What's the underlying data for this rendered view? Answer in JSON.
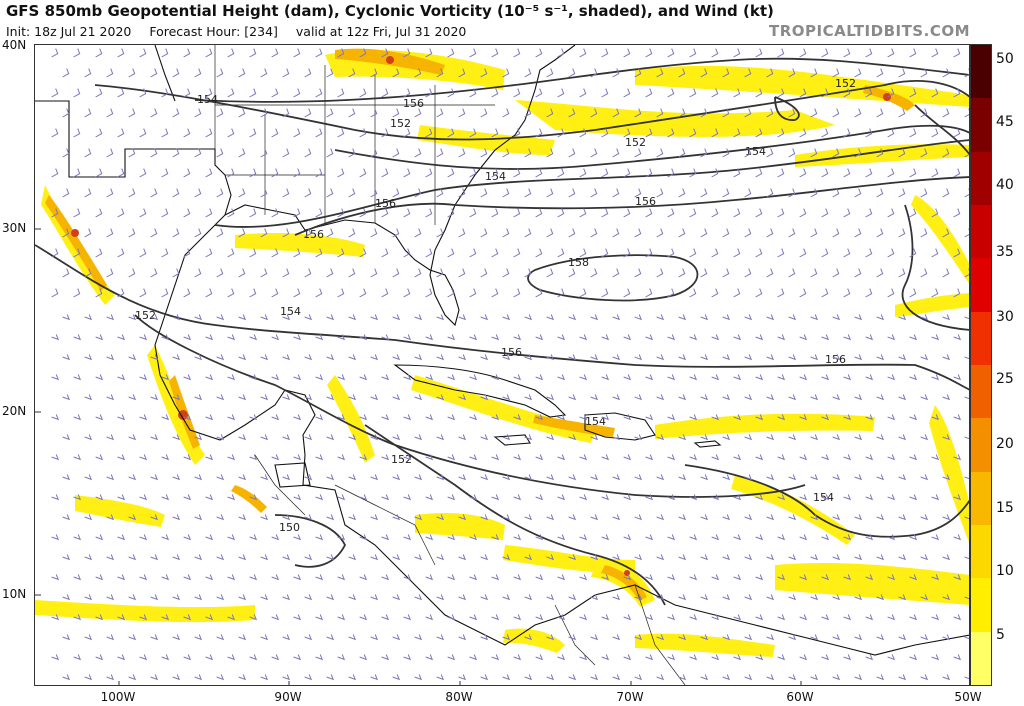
{
  "header": {
    "title": "GFS 850mb Geopotential Height (dam), Cyclonic Vorticity (10⁻⁵ s⁻¹, shaded), and Wind (kt)",
    "init": "Init: 18z Jul 21 2020",
    "forecast_hour": "Forecast Hour: [234]",
    "valid": "valid at 12z Fri, Jul 31 2020",
    "brand": "TROPICALTIDBITS.COM"
  },
  "axes": {
    "lat_labels": [
      "40N",
      "30N",
      "20N",
      "10N"
    ],
    "lon_labels": [
      "100W",
      "90W",
      "80W",
      "70W",
      "60W",
      "50W"
    ]
  },
  "colorbar": {
    "labels": [
      "50",
      "45",
      "40",
      "35",
      "30",
      "25",
      "20",
      "15",
      "10",
      "5"
    ],
    "colors": [
      "#4a0000",
      "#7a0000",
      "#a00000",
      "#c80000",
      "#e00000",
      "#f03000",
      "#f06000",
      "#f49000",
      "#f8b800",
      "#fcd800",
      "#ffee00",
      "#ffff66"
    ]
  },
  "contour_labels": [
    "154",
    "156",
    "152",
    "152",
    "154",
    "156",
    "152",
    "154",
    "156",
    "156",
    "158",
    "154",
    "156",
    "152",
    "150",
    "154",
    "154",
    "156",
    "152"
  ],
  "colors": {
    "contour": "#333333",
    "shade_light": "#ffee00",
    "shade_mid": "#f6b400",
    "shade_dark": "#d2401a",
    "barb": "#7a79b8",
    "coast": "#111111"
  }
}
